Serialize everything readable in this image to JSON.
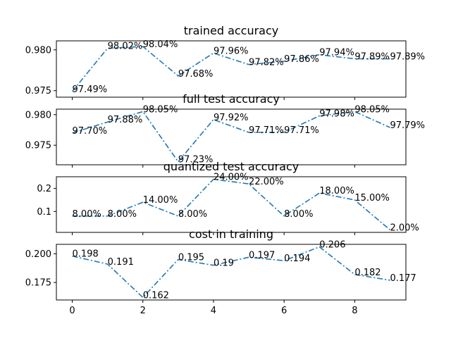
{
  "chart_data": [
    {
      "type": "line",
      "title": "trained accuracy",
      "x": [
        0,
        1,
        2,
        3,
        4,
        5,
        6,
        7,
        8,
        9
      ],
      "values": [
        0.9749,
        0.9802,
        0.9804,
        0.9768,
        0.9796,
        0.9782,
        0.9786,
        0.9794,
        0.9789,
        0.9789
      ],
      "data_labels": [
        "97.49%",
        "98.02%",
        "98.04%",
        "97.68%",
        "97.96%",
        "97.82%",
        "97.86%",
        "97.94%",
        "97.89%",
        "97.89%"
      ],
      "xlim": [
        -0.45,
        9.45
      ],
      "ylim": [
        0.9742,
        0.9811
      ],
      "yticks": [
        0.975,
        0.98
      ],
      "ytick_labels": [
        "0.975",
        "0.980"
      ],
      "line_color": "#1f77b4",
      "line_style": "dash-dot"
    },
    {
      "type": "line",
      "title": "full test accuracy",
      "x": [
        0,
        1,
        2,
        3,
        4,
        5,
        6,
        7,
        8,
        9
      ],
      "values": [
        0.977,
        0.9788,
        0.9805,
        0.9723,
        0.9792,
        0.9771,
        0.9771,
        0.9798,
        0.9805,
        0.9779
      ],
      "data_labels": [
        "97.70%",
        "97.88%",
        "98.05%",
        "97.23%",
        "97.92%",
        "97.71%",
        "97.71%",
        "97.98%",
        "98.05%",
        "97.79%"
      ],
      "xlim": [
        -0.45,
        9.45
      ],
      "ylim": [
        0.9718,
        0.9809
      ],
      "yticks": [
        0.975,
        0.98
      ],
      "ytick_labels": [
        "0.975",
        "0.980"
      ],
      "line_color": "#1f77b4",
      "line_style": "dash-dot"
    },
    {
      "type": "line",
      "title": "quantized test accuracy",
      "x": [
        0,
        1,
        2,
        3,
        4,
        5,
        6,
        7,
        8,
        9
      ],
      "values": [
        0.08,
        0.08,
        0.14,
        0.08,
        0.24,
        0.22,
        0.08,
        0.18,
        0.15,
        0.02
      ],
      "data_labels": [
        "8.00%",
        "8.00%",
        "14.00%",
        "8.00%",
        "24.00%",
        "22.00%",
        "8.00%",
        "18.00%",
        "15.00%",
        "2.00%"
      ],
      "xlim": [
        -0.45,
        9.45
      ],
      "ylim": [
        0.009,
        0.251
      ],
      "yticks": [
        0.1,
        0.2
      ],
      "ytick_labels": [
        "0.1",
        "0.2"
      ],
      "line_color": "#1f77b4",
      "line_style": "dash-dot"
    },
    {
      "type": "line",
      "title": "cost in training",
      "x": [
        0,
        1,
        2,
        3,
        4,
        5,
        6,
        7,
        8,
        9
      ],
      "values": [
        0.198,
        0.191,
        0.162,
        0.195,
        0.19,
        0.197,
        0.194,
        0.206,
        0.182,
        0.177
      ],
      "data_labels": [
        "0.198",
        "0.191",
        "0.162",
        "0.195",
        "0.19",
        "0.197",
        "0.194",
        "0.206",
        "0.182",
        "0.177"
      ],
      "xlim": [
        -0.45,
        9.45
      ],
      "ylim": [
        0.1598,
        0.2082
      ],
      "yticks": [
        0.175,
        0.2
      ],
      "ytick_labels": [
        "0.175",
        "0.200"
      ],
      "xticks": [
        0,
        2,
        4,
        6,
        8
      ],
      "xtick_labels": [
        "0",
        "2",
        "4",
        "6",
        "8"
      ],
      "line_color": "#1f77b4",
      "line_style": "dash-dot"
    }
  ]
}
